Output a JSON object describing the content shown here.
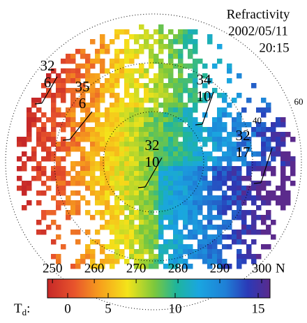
{
  "header": {
    "title": "Refractivity",
    "date": "2002/05/11",
    "time": "20:15"
  },
  "range_rings": {
    "labels": [
      "40",
      "60"
    ]
  },
  "stations": [
    {
      "top": 32,
      "bottom": 6
    },
    {
      "top": 35,
      "bottom": 6
    },
    {
      "top": 34,
      "bottom": 10
    },
    {
      "top": 32,
      "bottom": 10
    },
    {
      "top": 32,
      "bottom": 17
    }
  ],
  "colorbar": {
    "nlim": [
      248.8,
      302
    ],
    "ticks": [
      250,
      260,
      270,
      280,
      290,
      300
    ],
    "unit": "N",
    "td_symbol": "T",
    "td_subscript": "d",
    "td_colon": ":",
    "td_ticks": [
      0,
      5,
      10,
      15
    ]
  }
}
